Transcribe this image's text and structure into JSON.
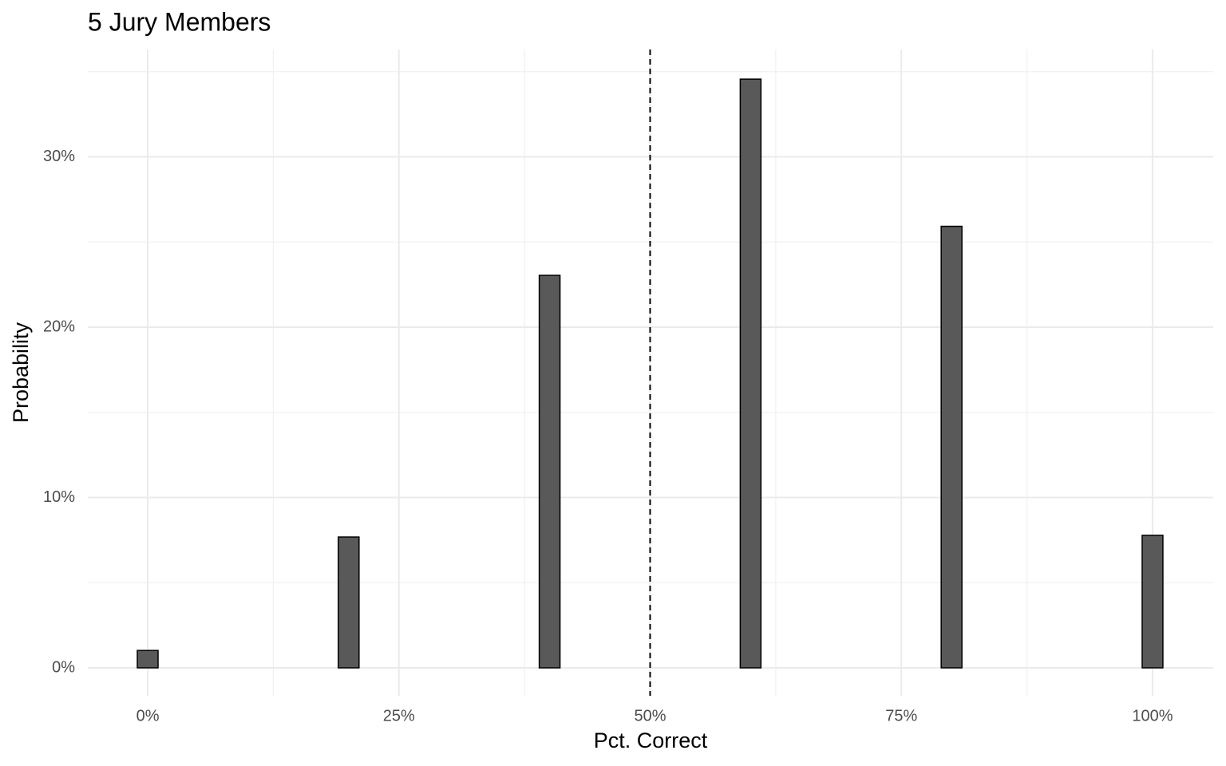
{
  "chart_data": {
    "type": "bar",
    "title": "5 Jury Members",
    "x_label": "Pct. Correct",
    "y_label": "Probability",
    "x": [
      0,
      20,
      40,
      60,
      80,
      100
    ],
    "values": [
      1.02,
      7.68,
      23.04,
      34.56,
      25.92,
      7.78
    ],
    "color": "#595959",
    "edge_color": "#000000",
    "xlim": [
      -5.96,
      106.04
    ],
    "ylim": [
      -1.64,
      36.3
    ],
    "xticks": [
      {
        "value": 0,
        "label": "0%"
      },
      {
        "value": 25,
        "label": "25%"
      },
      {
        "value": 50,
        "label": "50%"
      },
      {
        "value": 75,
        "label": "75%"
      },
      {
        "value": 100,
        "label": "100%"
      }
    ],
    "yticks": [
      {
        "value": 0,
        "label": "0%"
      },
      {
        "value": 10,
        "label": "10%"
      },
      {
        "value": 20,
        "label": "20%"
      },
      {
        "value": 30,
        "label": "30%"
      }
    ],
    "vline": 50,
    "grid": true
  }
}
